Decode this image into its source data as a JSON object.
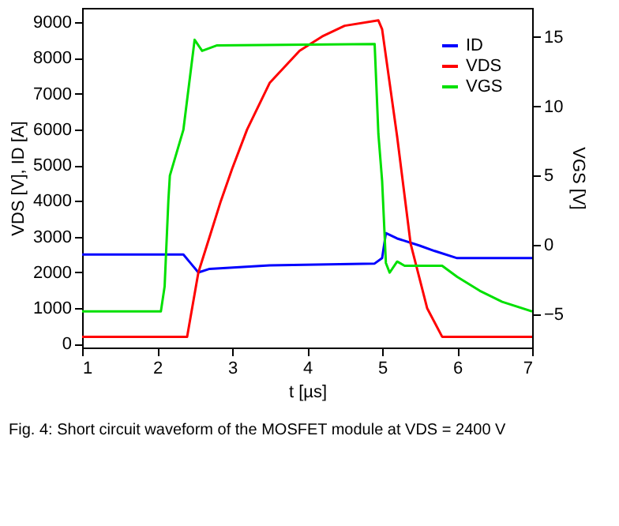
{
  "chart_data": {
    "type": "line",
    "xlabel": "t [µs]",
    "ylabel": "VDS [V], ID [A]",
    "y2label": "VGS [V]",
    "xlim": [
      1,
      7
    ],
    "xticks": [
      1,
      2,
      3,
      4,
      5,
      6,
      7
    ],
    "ylim": [
      -100,
      9400
    ],
    "yticks": [
      0,
      1000,
      2000,
      3000,
      4000,
      5000,
      6000,
      7000,
      8000,
      9000
    ],
    "y2lim": [
      -7.4,
      17.1
    ],
    "y2ticks": [
      -5,
      0,
      5,
      10,
      15
    ],
    "grid": false,
    "legend": "top right",
    "marker": "none",
    "line_style": "solid",
    "series": [
      {
        "name": "ID",
        "color": "#0000ff",
        "x": [
          1,
          2.35,
          2.45,
          2.55,
          2.7,
          3.5,
          4.9,
          5.0,
          5.05,
          5.2,
          5.5,
          5.7,
          6.0,
          7
        ],
        "values": [
          2500,
          2500,
          2250,
          2000,
          2100,
          2200,
          2250,
          2400,
          3100,
          2950,
          2750,
          2600,
          2400,
          2400
        ]
      },
      {
        "name": "VDS",
        "color": "#ff0000",
        "x": [
          1,
          2.4,
          2.45,
          2.55,
          2.7,
          2.85,
          3.0,
          3.2,
          3.5,
          3.9,
          4.2,
          4.5,
          4.95,
          5.0,
          5.2,
          5.38,
          5.6,
          5.8,
          7
        ],
        "values": [
          200,
          200,
          800,
          2000,
          3000,
          4000,
          4900,
          6000,
          7300,
          8200,
          8600,
          8900,
          9050,
          8800,
          5800,
          2800,
          1000,
          200,
          200
        ]
      },
      {
        "name": "VGS",
        "color": "#00e000",
        "axis": "y2",
        "x": [
          1,
          2.05,
          2.1,
          2.15,
          2.17,
          2.35,
          2.5,
          2.6,
          2.8,
          4.9,
          4.95,
          5.0,
          5.05,
          5.1,
          5.2,
          5.3,
          5.8,
          6.0,
          6.3,
          6.6,
          7
        ],
        "values": [
          -4.8,
          -4.8,
          -3.0,
          3.2,
          5.0,
          8.3,
          14.8,
          14.0,
          14.4,
          14.5,
          8.0,
          4.6,
          -1.3,
          -2.0,
          -1.2,
          -1.5,
          -1.5,
          -2.3,
          -3.3,
          -4.1,
          -4.8
        ]
      }
    ],
    "annotations": [
      "Fig. 4: Short circuit waveform of the MOSFET module at VDS = 2400 V"
    ]
  }
}
